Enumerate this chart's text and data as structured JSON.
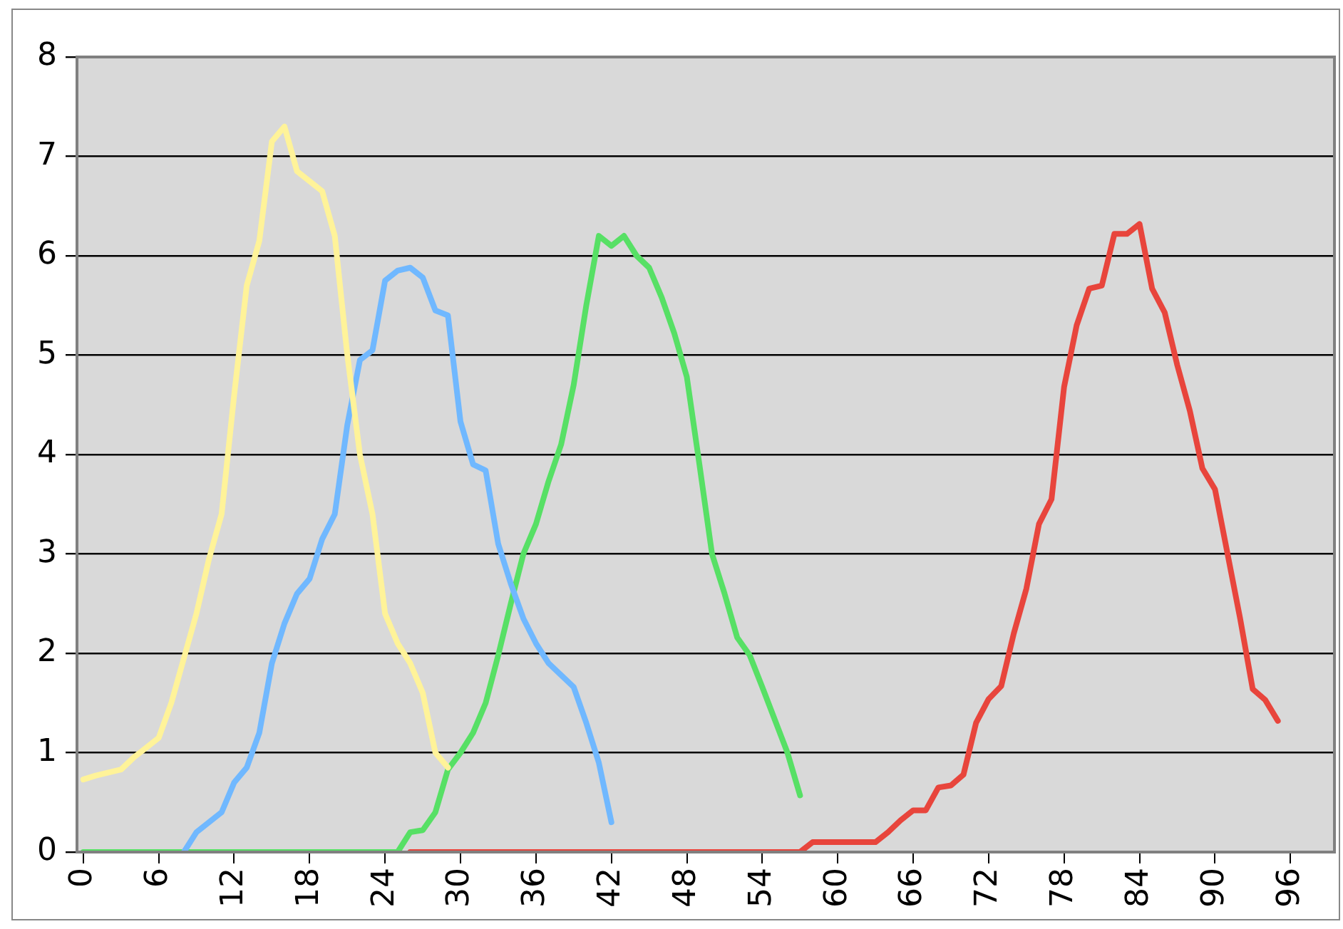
{
  "chart_data": {
    "type": "line",
    "xlim": [
      -0.5,
      99.5
    ],
    "xticks": [
      0,
      6,
      12,
      18,
      24,
      30,
      36,
      42,
      48,
      54,
      60,
      66,
      72,
      78,
      84,
      90,
      96
    ],
    "ylim": [
      0,
      8
    ],
    "yticks": [
      0,
      1,
      2,
      3,
      4,
      5,
      6,
      7,
      8
    ],
    "grid": "y",
    "legend": false,
    "marker": "none",
    "line_style": "solid",
    "series": [
      {
        "color": "#fff399",
        "x": [
          0,
          1,
          2,
          3,
          4,
          5,
          6,
          7,
          8,
          9,
          10,
          11,
          12,
          13,
          14,
          15,
          16,
          17,
          18,
          19,
          20,
          21,
          22,
          23,
          24,
          25,
          26,
          27,
          28,
          29
        ],
        "values": [
          0.73,
          0.77,
          0.8,
          0.83,
          0.95,
          1.05,
          1.15,
          1.5,
          1.95,
          2.4,
          2.95,
          3.4,
          4.6,
          5.7,
          6.15,
          7.15,
          7.3,
          6.85,
          6.75,
          6.65,
          6.2,
          5.0,
          4.0,
          3.4,
          2.4,
          2.1,
          1.9,
          1.6,
          1.0,
          0.85
        ]
      },
      {
        "color": "#70b8ff",
        "x": [
          8,
          9,
          10,
          11,
          12,
          13,
          14,
          15,
          16,
          17,
          18,
          19,
          20,
          21,
          22,
          23,
          24,
          25,
          26,
          27,
          28,
          29,
          30,
          31,
          32,
          33,
          34,
          35,
          36,
          37,
          38,
          39,
          40,
          41,
          42
        ],
        "values": [
          0,
          0.2,
          0.3,
          0.4,
          0.7,
          0.85,
          1.2,
          1.9,
          2.3,
          2.6,
          2.75,
          3.15,
          3.4,
          4.3,
          4.95,
          5.05,
          5.75,
          5.85,
          5.88,
          5.78,
          5.45,
          5.4,
          4.33,
          3.9,
          3.84,
          3.1,
          2.7,
          2.35,
          2.1,
          1.9,
          1.78,
          1.66,
          1.3,
          0.9,
          0.3
        ]
      },
      {
        "color": "#57e065",
        "x": [
          0,
          1,
          2,
          3,
          4,
          5,
          6,
          7,
          8,
          9,
          10,
          11,
          12,
          13,
          14,
          15,
          16,
          17,
          18,
          19,
          20,
          21,
          22,
          23,
          24,
          25,
          26,
          27,
          28,
          29,
          30,
          31,
          32,
          33,
          34,
          35,
          36,
          37,
          38,
          39,
          40,
          41,
          42,
          43,
          44,
          45,
          46,
          47,
          48,
          49,
          50,
          51,
          52,
          53,
          54,
          55,
          56,
          57
        ],
        "values": [
          0,
          0,
          0,
          0,
          0,
          0,
          0,
          0,
          0,
          0,
          0,
          0,
          0,
          0,
          0,
          0,
          0,
          0,
          0,
          0,
          0,
          0,
          0,
          0,
          0,
          0,
          0.2,
          0.22,
          0.4,
          0.83,
          1.0,
          1.2,
          1.5,
          1.98,
          2.5,
          3.0,
          3.3,
          3.73,
          4.1,
          4.7,
          5.5,
          6.2,
          6.1,
          6.2,
          6.0,
          5.88,
          5.58,
          5.22,
          4.78,
          3.9,
          3.0,
          2.6,
          2.16,
          1.98,
          1.66,
          1.33,
          1.0,
          0.57
        ]
      },
      {
        "color": "#e8453c",
        "x": [
          26,
          27,
          28,
          29,
          30,
          31,
          32,
          33,
          34,
          35,
          36,
          37,
          38,
          39,
          40,
          41,
          42,
          43,
          44,
          45,
          46,
          47,
          48,
          49,
          50,
          51,
          52,
          53,
          54,
          55,
          56,
          57,
          58,
          59,
          60,
          61,
          62,
          63,
          64,
          65,
          66,
          67,
          68,
          69,
          70,
          71,
          72,
          73,
          74,
          75,
          76,
          77,
          78,
          79,
          80,
          81,
          82,
          83,
          84,
          85,
          86,
          87,
          88,
          89,
          90,
          91,
          92,
          93,
          94,
          95
        ],
        "values": [
          0,
          0,
          0,
          0,
          0,
          0,
          0,
          0,
          0,
          0,
          0,
          0,
          0,
          0,
          0,
          0,
          0,
          0,
          0,
          0,
          0,
          0,
          0,
          0,
          0,
          0,
          0,
          0,
          0,
          0,
          0,
          0,
          0.1,
          0.1,
          0.1,
          0.1,
          0.1,
          0.1,
          0.2,
          0.32,
          0.42,
          0.42,
          0.65,
          0.67,
          0.78,
          1.3,
          1.54,
          1.67,
          2.2,
          2.65,
          3.3,
          3.55,
          4.68,
          5.3,
          5.67,
          5.7,
          6.22,
          6.22,
          6.32,
          5.67,
          5.43,
          4.9,
          4.44,
          3.86,
          3.65,
          3.0,
          2.35,
          1.64,
          1.53,
          1.32
        ]
      }
    ]
  }
}
